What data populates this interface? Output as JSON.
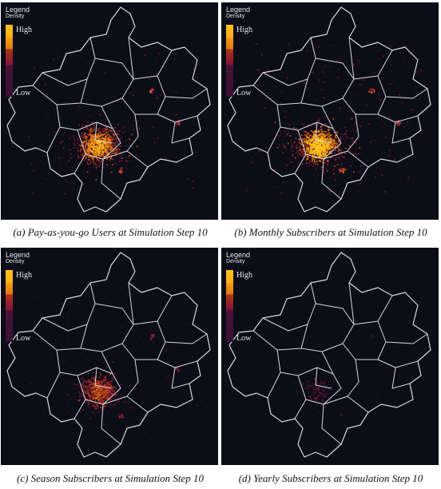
{
  "legend": {
    "title": "Legend",
    "subtitle": "Density",
    "high": "High",
    "low": "Low",
    "colors": [
      "#ffc21a",
      "#e07a10",
      "#b0341a",
      "#7d1438",
      "#3a1036"
    ]
  },
  "panels": [
    {
      "id": "a",
      "caption": "(a) Pay-as-you-go Users at Simulation Step 10",
      "intensity": 0.85
    },
    {
      "id": "b",
      "caption": "(b) Monthly Subscribers at Simulation Step 10",
      "intensity": 1.0
    },
    {
      "id": "c",
      "caption": "(c) Season Subscribers at Simulation Step 10",
      "intensity": 0.55
    },
    {
      "id": "d",
      "caption": "(d) Yearly Subscribers at Simulation Step 10",
      "intensity": 0.12
    }
  ],
  "colors": {
    "background": "#0b0d17",
    "boundary": "#d8d8e0"
  }
}
